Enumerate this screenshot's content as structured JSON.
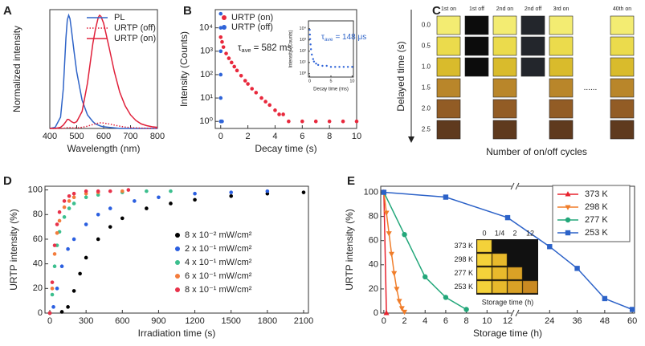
{
  "chart_data": [
    {
      "type": "line",
      "panel_label": "A",
      "xlabel": "Wavelength (nm)",
      "ylabel": "Normalized intensity",
      "x": [
        400,
        420,
        440,
        450,
        460,
        465,
        470,
        475,
        480,
        490,
        500,
        520,
        540,
        560,
        570,
        580,
        585,
        590,
        600,
        620,
        640,
        660,
        680,
        700,
        720,
        740,
        760,
        780,
        800
      ],
      "series": [
        {
          "name": "PL",
          "color": "#2f64c8",
          "style": "solid",
          "values": [
            0,
            0.01,
            0.1,
            0.35,
            0.8,
            0.96,
            1.0,
            0.97,
            0.88,
            0.68,
            0.5,
            0.25,
            0.12,
            0.06,
            0.04,
            0.03,
            0.025,
            0.02,
            0.015,
            0.01,
            0.005,
            0,
            0,
            0,
            0,
            0,
            0,
            0,
            0
          ]
        },
        {
          "name": "URTP (off)",
          "color": "#e0203a",
          "style": "dotted",
          "values": [
            0,
            0,
            0,
            0,
            0.005,
            0.007,
            0.008,
            0.007,
            0.006,
            0.005,
            0.005,
            0.01,
            0.02,
            0.035,
            0.042,
            0.047,
            0.05,
            0.05,
            0.048,
            0.04,
            0.03,
            0.02,
            0.012,
            0.008,
            0.005,
            0.003,
            0.002,
            0.001,
            0
          ]
        },
        {
          "name": "URTP (on)",
          "color": "#e0203a",
          "style": "solid",
          "values": [
            0,
            0,
            0.01,
            0.03,
            0.06,
            0.08,
            0.08,
            0.07,
            0.06,
            0.05,
            0.06,
            0.15,
            0.4,
            0.75,
            0.88,
            0.98,
            1.0,
            0.99,
            0.93,
            0.72,
            0.5,
            0.32,
            0.2,
            0.12,
            0.07,
            0.04,
            0.025,
            0.015,
            0.01
          ]
        }
      ],
      "xlim": [
        400,
        800
      ],
      "xticks": [
        400,
        500,
        600,
        700,
        800
      ],
      "ylim": [
        0,
        1.05
      ],
      "legend": "upper right"
    },
    {
      "type": "scatter",
      "panel_label": "B",
      "xlabel": "Decay time (s)",
      "ylabel": "Intensity (Counts)",
      "ylog": true,
      "series": [
        {
          "name": "URTP (on)",
          "color": "#e8283c",
          "x": [
            0,
            0.1,
            0.2,
            0.4,
            0.6,
            0.8,
            1,
            1.2,
            1.5,
            1.8,
            2,
            2.3,
            2.6,
            3,
            3.3,
            3.6,
            4,
            4.3,
            4.6,
            5,
            6,
            7,
            8,
            9,
            10
          ],
          "values": [
            4000,
            2500,
            1500,
            800,
            500,
            330,
            220,
            150,
            90,
            55,
            40,
            25,
            17,
            10,
            7,
            5,
            3,
            2,
            2,
            1,
            1,
            1,
            1,
            1,
            1
          ]
        },
        {
          "name": "URTP (off)",
          "color": "#2f64d8",
          "x": [
            0,
            0,
            0,
            0,
            0,
            0,
            0.05,
            0.1
          ],
          "values": [
            40000,
            10000,
            1000,
            100,
            10,
            1,
            1,
            1
          ]
        }
      ],
      "xlim": [
        -0.4,
        10
      ],
      "xticks": [
        0,
        2,
        4,
        6,
        8,
        10
      ],
      "ylim": [
        0.5,
        60000
      ],
      "yticks": [
        {
          "value": 1,
          "label": "10⁰"
        },
        {
          "value": 10,
          "label": "10¹"
        },
        {
          "value": 100,
          "label": "10²"
        },
        {
          "value": 1000,
          "label": "10³"
        },
        {
          "value": 10000,
          "label": "10⁴"
        }
      ],
      "legend": "upper left",
      "annotations": [
        {
          "color": "#222222",
          "parts": [
            "τ",
            "ave",
            "= 582 ms"
          ]
        }
      ]
    },
    {
      "type": "scatter",
      "xlabel": "Decay time (ms)",
      "ylabel": "Intensity (Counts)",
      "ylog": true,
      "series": [
        {
          "color": "#2f64d8",
          "x": [
            0,
            0.05,
            0.1,
            0.2,
            0.3,
            0.5,
            0.8,
            1,
            1.5,
            2,
            3,
            4,
            5,
            6,
            7,
            8,
            9,
            10
          ],
          "values": [
            8000,
            3000,
            1200,
            400,
            150,
            50,
            20,
            12,
            8,
            6,
            5,
            5,
            4,
            4,
            4,
            4,
            4,
            4
          ]
        }
      ],
      "xlim": [
        -0.3,
        10.3
      ],
      "xticks": [
        0,
        5,
        10
      ],
      "ylim": [
        0.5,
        50000
      ],
      "yticks": [
        {
          "value": 1,
          "label": "10⁰"
        },
        {
          "value": 10,
          "label": "10¹"
        },
        {
          "value": 100,
          "label": "10²"
        },
        {
          "value": 1000,
          "label": "10³"
        },
        {
          "value": 10000,
          "label": "10⁴"
        }
      ],
      "annotations": [
        {
          "color": "#2f64c8",
          "parts": [
            "τ",
            "ave",
            "= 148 μs"
          ]
        }
      ]
    },
    {
      "type": "scatter",
      "panel_label": "D",
      "xlabel": "Irradiation time (s)",
      "ylabel": "URTP intensity (%)",
      "series": [
        {
          "name": "8 x 10⁻² mW/cm²",
          "color": "#000000",
          "x": [
            0,
            100,
            150,
            200,
            250,
            300,
            400,
            500,
            600,
            800,
            1000,
            1200,
            1500,
            1800,
            2100
          ],
          "values": [
            0,
            1,
            5,
            18,
            32,
            45,
            60,
            70,
            77,
            85,
            89,
            92,
            95,
            97,
            98
          ]
        },
        {
          "name": "2 x 10⁻¹ mW/cm²",
          "color": "#2b5fe0",
          "x": [
            0,
            30,
            60,
            100,
            150,
            200,
            300,
            400,
            500,
            700,
            900,
            1200,
            1500,
            1800
          ],
          "values": [
            0,
            5,
            20,
            38,
            52,
            60,
            72,
            80,
            85,
            91,
            94,
            97,
            98,
            99
          ]
        },
        {
          "name": "4 x 10⁻¹ mW/cm²",
          "color": "#3cbf8e",
          "x": [
            0,
            20,
            40,
            60,
            80,
            120,
            160,
            200,
            300,
            400,
            600,
            800,
            1000
          ],
          "values": [
            0,
            15,
            38,
            55,
            66,
            78,
            85,
            89,
            94,
            96,
            98,
            99,
            99
          ]
        },
        {
          "name": "6 x 10⁻¹ mW/cm²",
          "color": "#f47c3c",
          "x": [
            0,
            20,
            40,
            60,
            80,
            120,
            160,
            200,
            300,
            400,
            600
          ],
          "values": [
            0,
            20,
            48,
            65,
            75,
            86,
            91,
            94,
            97,
            98,
            99
          ]
        },
        {
          "name": "8 x 10⁻¹ mW/cm²",
          "color": "#e8324a",
          "x": [
            0,
            20,
            40,
            60,
            80,
            120,
            160,
            200,
            300,
            400,
            500,
            650
          ],
          "values": [
            0,
            25,
            55,
            72,
            82,
            91,
            95,
            97,
            99,
            99,
            99,
            100
          ]
        }
      ],
      "xlim": [
        -40,
        2140
      ],
      "xticks": [
        0,
        300,
        600,
        900,
        1200,
        1500,
        1800,
        2100
      ],
      "ylim": [
        0,
        103
      ],
      "yticks": [
        0,
        20,
        40,
        60,
        80,
        100
      ],
      "legend": "lower right"
    },
    {
      "type": "line",
      "panel_label": "E",
      "xlabel": "Storage time (h)",
      "ylabel": "URTP intensity (%)",
      "series": [
        {
          "name": "373 K",
          "color": "#e8232e",
          "marker": "triangle-up",
          "x": [
            0,
            0.25
          ],
          "values": [
            100,
            0
          ]
        },
        {
          "name": "298 K",
          "color": "#f07d2a",
          "marker": "triangle-down",
          "x": [
            0,
            0.25,
            0.5,
            0.75,
            1,
            1.25,
            1.5,
            1.75,
            2
          ],
          "values": [
            100,
            83,
            66,
            49,
            33,
            20,
            10,
            4,
            1
          ]
        },
        {
          "name": "277 K",
          "color": "#23a77a",
          "marker": "circle",
          "x": [
            0,
            2,
            4,
            6,
            8
          ],
          "values": [
            100,
            65,
            30,
            13,
            3
          ]
        },
        {
          "name": "253 K",
          "color": "#2c62c8",
          "marker": "square",
          "x": [
            0,
            6,
            12,
            24,
            36,
            48,
            60
          ],
          "values": [
            100,
            96,
            79,
            55,
            37,
            12,
            3
          ]
        }
      ],
      "xlim": [
        -0.3,
        61
      ],
      "xbreak": 12,
      "xticks": [
        0,
        2,
        4,
        6,
        8,
        10,
        12,
        24,
        36,
        48,
        60
      ],
      "ylim": [
        0,
        105
      ],
      "yticks": [
        0,
        20,
        40,
        60,
        80,
        100
      ],
      "legend": "upper right",
      "legend_frame": true,
      "inset": {
        "columns": [
          "0",
          "1/4",
          "2",
          "12"
        ],
        "rows": [
          "373 K",
          "298 K",
          "277 K",
          "253 K"
        ],
        "xlabel": "Storage time (h)"
      }
    }
  ],
  "photo_panel": {
    "panel_label": "C",
    "columns": [
      "1st on",
      "1st off",
      "2nd on",
      "2nd off",
      "3rd on",
      "40th on"
    ],
    "ellipsis": "......",
    "rows": [
      "0.0",
      "0.5",
      "1.0",
      "1.5",
      "2.0",
      "2.5"
    ],
    "ylabel": "Delayed time (s)",
    "xlabel": "Number of on/off cycles"
  }
}
